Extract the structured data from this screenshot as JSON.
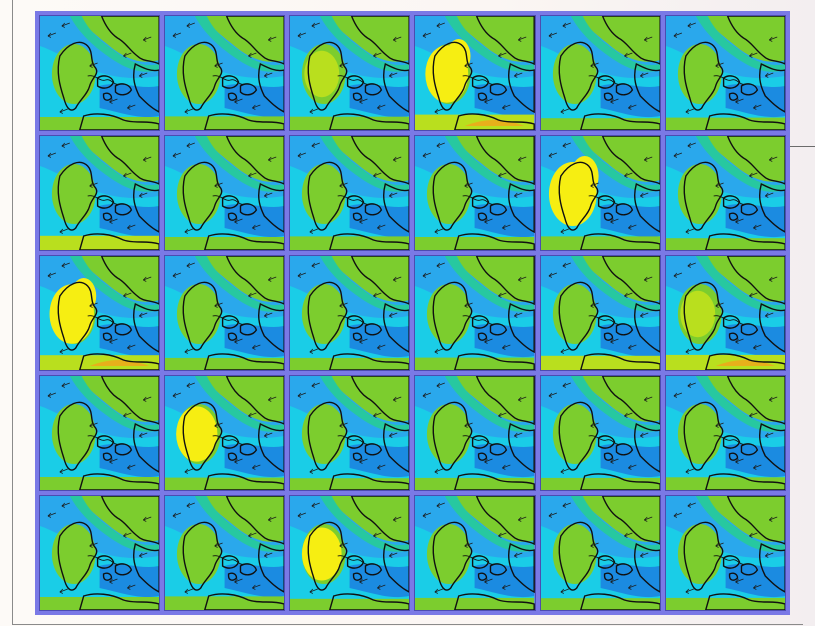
{
  "figure": {
    "rows": 5,
    "columns": 6,
    "colors": {
      "frame": "#7a79e6",
      "deep_blue": "#1c7be0",
      "blue": "#2aa8ec",
      "cyan": "#18d4e6",
      "teal": "#27c8a0",
      "green": "#7ccd2e",
      "yellow_green": "#b9df1e",
      "yellow": "#f6ee12",
      "orange": "#f2a41a",
      "coastline": "#101010"
    },
    "panels": [
      {
        "id": "r1c1",
        "hot": 0.35,
        "south": 0.5
      },
      {
        "id": "r1c2",
        "hot": 0.4,
        "south": 0.6
      },
      {
        "id": "r1c3",
        "hot": 0.6,
        "south": 0.55
      },
      {
        "id": "r1c4",
        "hot": 0.85,
        "south": 0.9
      },
      {
        "id": "r1c5",
        "hot": 0.45,
        "south": 0.3
      },
      {
        "id": "r1c6",
        "hot": 0.35,
        "south": 0.4
      },
      {
        "id": "r2c1",
        "hot": 0.45,
        "south": 0.7
      },
      {
        "id": "r2c2",
        "hot": 0.3,
        "south": 0.5
      },
      {
        "id": "r2c3",
        "hot": 0.35,
        "south": 0.6
      },
      {
        "id": "r2c4",
        "hot": 0.45,
        "south": 0.5
      },
      {
        "id": "r2c5",
        "hot": 1.0,
        "south": 0.6
      },
      {
        "id": "r2c6",
        "hot": 0.2,
        "south": 0.3
      },
      {
        "id": "r3c1",
        "hot": 0.9,
        "south": 0.8
      },
      {
        "id": "r3c2",
        "hot": 0.25,
        "south": 0.35
      },
      {
        "id": "r3c3",
        "hot": 0.3,
        "south": 0.35
      },
      {
        "id": "r3c4",
        "hot": 0.25,
        "south": 0.4
      },
      {
        "id": "r3c5",
        "hot": 0.45,
        "south": 0.7
      },
      {
        "id": "r3c6",
        "hot": 0.6,
        "south": 0.85
      },
      {
        "id": "r4c1",
        "hot": 0.4,
        "south": 0.5
      },
      {
        "id": "r4c2",
        "hot": 0.8,
        "south": 0.4
      },
      {
        "id": "r4c3",
        "hot": 0.25,
        "south": 0.3
      },
      {
        "id": "r4c4",
        "hot": 0.3,
        "south": 0.35
      },
      {
        "id": "r4c5",
        "hot": 0.3,
        "south": 0.35
      },
      {
        "id": "r4c6",
        "hot": 0.35,
        "south": 0.45
      },
      {
        "id": "r5c1",
        "hot": 0.3,
        "south": 0.5
      },
      {
        "id": "r5c2",
        "hot": 0.45,
        "south": 0.6
      },
      {
        "id": "r5c3",
        "hot": 0.75,
        "south": 0.2
      },
      {
        "id": "r5c4",
        "hot": 0.25,
        "south": 0.35
      },
      {
        "id": "r5c5",
        "hot": 0.25,
        "south": 0.3
      },
      {
        "id": "r5c6",
        "hot": 0.3,
        "south": 0.35
      }
    ]
  }
}
